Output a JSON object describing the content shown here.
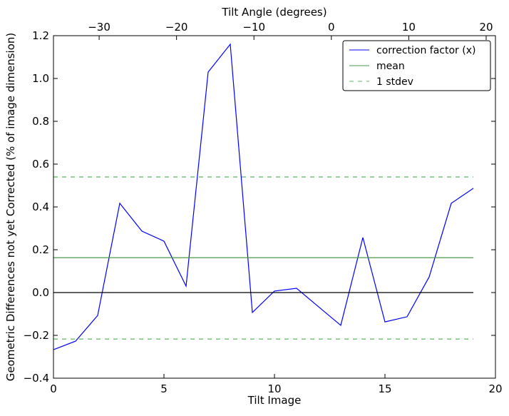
{
  "chart_data": {
    "type": "line",
    "xlabel": "Tilt Image",
    "ylabel": "Geometric Differences not yet Corrected (% of image dimension)",
    "top_xlabel": "Tilt Angle (degrees)",
    "xlim": [
      0,
      20
    ],
    "ylim": [
      -0.4,
      1.2
    ],
    "top_xlim": [
      -35.9,
      21.2
    ],
    "xticks": [
      0,
      5,
      10,
      15,
      20
    ],
    "yticks": [
      -0.4,
      -0.2,
      0.0,
      0.2,
      0.4,
      0.6,
      0.8,
      1.0,
      1.2
    ],
    "top_xticks": [
      -30,
      -20,
      -10,
      0,
      10,
      20
    ],
    "xtick_labels": [
      "0",
      "5",
      "10",
      "15",
      "20"
    ],
    "ytick_labels": [
      "−0.4",
      "−0.2",
      "0.0",
      "0.2",
      "0.4",
      "0.6",
      "0.8",
      "1.0",
      "1.2"
    ],
    "top_xtick_labels": [
      "−30",
      "−20",
      "−10",
      "0",
      "10",
      "20"
    ],
    "grid": false,
    "legend_position": "top-right",
    "series": [
      {
        "name": "correction factor (x)",
        "color": "#0000ff",
        "style": "solid",
        "x": [
          0,
          1,
          2,
          3,
          4,
          5,
          6,
          7,
          8,
          9,
          10,
          11,
          12,
          13,
          14,
          15,
          16,
          17,
          18,
          19
        ],
        "values": [
          -0.267,
          -0.227,
          -0.107,
          0.417,
          0.287,
          0.24,
          0.03,
          1.03,
          1.16,
          -0.093,
          0.007,
          0.02,
          -0.067,
          -0.153,
          0.257,
          -0.137,
          -0.113,
          0.073,
          0.417,
          0.487
        ]
      },
      {
        "name": "mean",
        "color": "#4a9a4a",
        "style": "solid",
        "x": [
          0,
          19
        ],
        "values": [
          0.163,
          0.163
        ]
      },
      {
        "name": "1 stdev",
        "color": "#5cb85c",
        "style": "dashed",
        "x": [
          0,
          19
        ],
        "values": [
          0.54,
          0.54
        ]
      },
      {
        "name": "",
        "color": "#5cb85c",
        "style": "dashed",
        "x": [
          0,
          19
        ],
        "values": [
          -0.217,
          -0.217
        ]
      },
      {
        "name": "",
        "color": "#000000",
        "style": "solid",
        "x": [
          0,
          19
        ],
        "values": [
          0,
          0
        ]
      }
    ]
  }
}
